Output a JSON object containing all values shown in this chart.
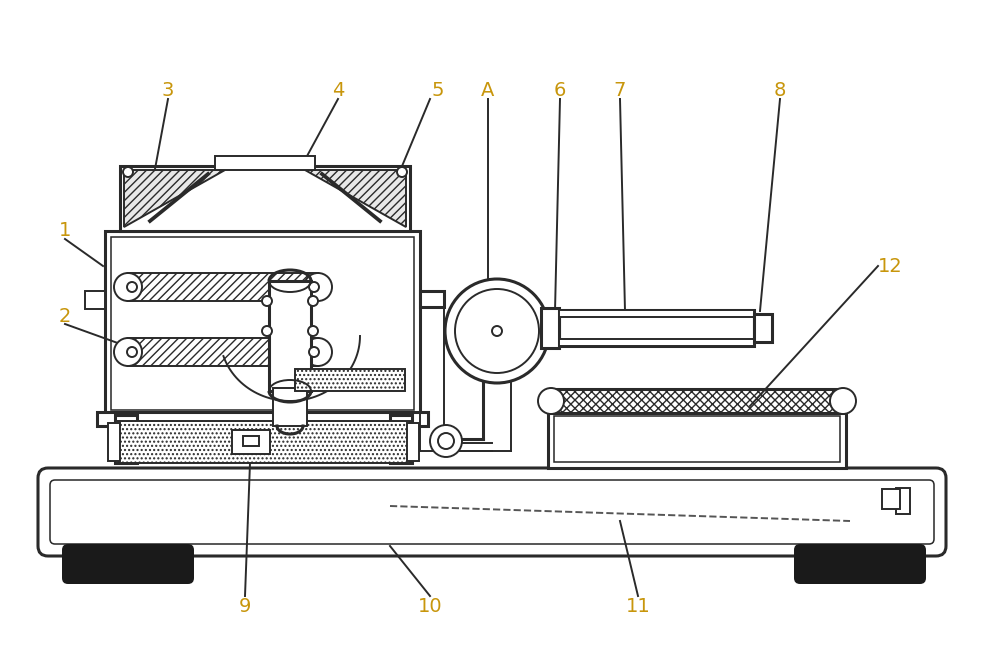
{
  "bg_color": "#ffffff",
  "line_color": "#2a2a2a",
  "label_color": "#c8960c",
  "lw": 1.4,
  "figsize": [
    10.0,
    6.61
  ],
  "dpi": 100
}
